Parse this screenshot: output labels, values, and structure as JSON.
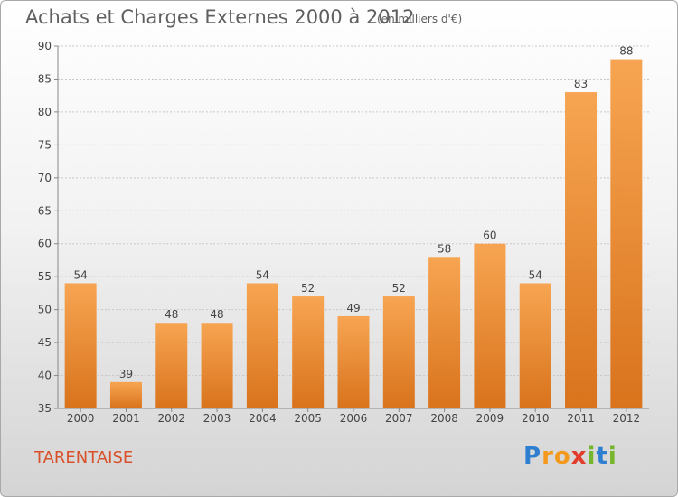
{
  "chart_data": {
    "type": "bar",
    "title": "Achats et Charges Externes 2000 à 2012",
    "subtitle": "(en milliers d'€)",
    "categories": [
      "2000",
      "2001",
      "2002",
      "2003",
      "2004",
      "2005",
      "2006",
      "2007",
      "2008",
      "2009",
      "2010",
      "2011",
      "2012"
    ],
    "values": [
      54,
      39,
      48,
      48,
      54,
      52,
      49,
      52,
      58,
      60,
      54,
      83,
      88
    ],
    "ylim": [
      35,
      90
    ],
    "yticks": [
      35,
      40,
      45,
      50,
      55,
      60,
      65,
      70,
      75,
      80,
      85,
      90
    ],
    "grid": "dashed horizontal",
    "bar_color_top": "#f7a552",
    "bar_color_bottom": "#d9731c"
  },
  "footer": {
    "location": "TARENTAISE",
    "logo_letters": [
      "P",
      "r",
      "o",
      "x",
      "i",
      "t",
      "i"
    ],
    "logo_colors": [
      "#2f7fd1",
      "#f39a1e",
      "#f39a1e",
      "#e23c2b",
      "#76b62c",
      "#2f7fd1",
      "#76b62c"
    ]
  }
}
